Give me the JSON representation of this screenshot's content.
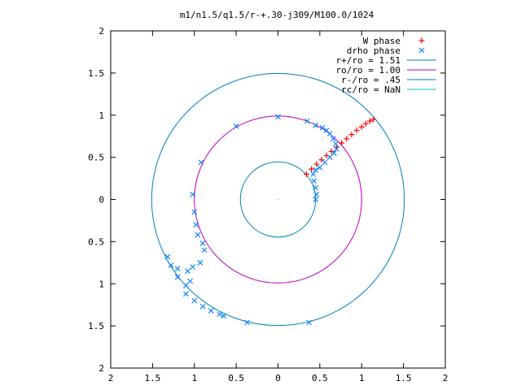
{
  "chart_data": {
    "type": "scatter",
    "title": "m1/n1.5/q1.5/r-+.30-j309/M100.0/1024",
    "xlim": [
      -2,
      2
    ],
    "ylim": [
      -2,
      2
    ],
    "x_ticks": [
      {
        "value": -2,
        "label": "2"
      },
      {
        "value": -1.5,
        "label": "1.5"
      },
      {
        "value": -1,
        "label": "1"
      },
      {
        "value": -0.5,
        "label": "0.5"
      },
      {
        "value": 0,
        "label": "0"
      },
      {
        "value": 0.5,
        "label": "0.5"
      },
      {
        "value": 1,
        "label": "1"
      },
      {
        "value": 1.5,
        "label": "1.5"
      },
      {
        "value": 2,
        "label": "2"
      }
    ],
    "y_ticks": [
      {
        "value": 2,
        "label": "2"
      },
      {
        "value": 1.5,
        "label": "1.5"
      },
      {
        "value": 1,
        "label": "1"
      },
      {
        "value": 0.5,
        "label": "0.5"
      },
      {
        "value": 0,
        "label": "0"
      },
      {
        "value": -0.5,
        "label": "0.5"
      },
      {
        "value": -1,
        "label": "1"
      },
      {
        "value": -1.5,
        "label": "1.5"
      },
      {
        "value": -2,
        "label": "2"
      }
    ],
    "legend_position": "top-right",
    "grid": false,
    "series": [
      {
        "name": "W phase",
        "marker": "plus",
        "color": "#ff0000",
        "points": [
          [
            0.34,
            0.3
          ],
          [
            0.4,
            0.36
          ],
          [
            0.46,
            0.42
          ],
          [
            0.52,
            0.47
          ],
          [
            0.58,
            0.52
          ],
          [
            0.64,
            0.57
          ],
          [
            0.7,
            0.62
          ],
          [
            0.76,
            0.67
          ],
          [
            0.82,
            0.72
          ],
          [
            0.88,
            0.77
          ],
          [
            0.94,
            0.82
          ],
          [
            1.0,
            0.86
          ],
          [
            1.05,
            0.9
          ],
          [
            1.1,
            0.93
          ],
          [
            1.14,
            0.95
          ]
        ]
      },
      {
        "name": "drho phase",
        "marker": "cross",
        "color": "#0080ff",
        "points": [
          [
            0.0,
            0.98
          ],
          [
            -0.5,
            0.87
          ],
          [
            0.35,
            0.93
          ],
          [
            0.45,
            0.88
          ],
          [
            0.53,
            0.85
          ],
          [
            0.58,
            0.82
          ],
          [
            0.62,
            0.78
          ],
          [
            0.66,
            0.72
          ],
          [
            0.69,
            0.66
          ],
          [
            0.7,
            0.6
          ],
          [
            0.67,
            0.55
          ],
          [
            0.62,
            0.5
          ],
          [
            0.56,
            0.44
          ],
          [
            0.5,
            0.38
          ],
          [
            0.45,
            0.35
          ],
          [
            0.42,
            0.3
          ],
          [
            0.43,
            0.22
          ],
          [
            0.45,
            0.14
          ],
          [
            0.46,
            0.06
          ],
          [
            0.45,
            0.0
          ],
          [
            -0.92,
            0.44
          ],
          [
            -1.02,
            0.06
          ],
          [
            -1.0,
            -0.15
          ],
          [
            -0.98,
            -0.3
          ],
          [
            -0.96,
            -0.42
          ],
          [
            -0.9,
            -0.52
          ],
          [
            -0.88,
            -0.6
          ],
          [
            -0.93,
            -0.75
          ],
          [
            -1.02,
            -0.8
          ],
          [
            -1.08,
            -0.85
          ],
          [
            -1.05,
            -0.97
          ],
          [
            -1.1,
            -1.02
          ],
          [
            -1.2,
            -0.82
          ],
          [
            -1.32,
            -0.68
          ],
          [
            -1.28,
            -0.78
          ],
          [
            -1.2,
            -0.92
          ],
          [
            -1.1,
            -1.12
          ],
          [
            -1.0,
            -1.2
          ],
          [
            -0.9,
            -1.27
          ],
          [
            -0.8,
            -1.32
          ],
          [
            -0.7,
            -1.36
          ],
          [
            -0.65,
            -1.38
          ],
          [
            -0.37,
            -1.46
          ],
          [
            0.37,
            -1.46
          ]
        ]
      },
      {
        "name": "r+/ro = 1.51",
        "kind": "circle",
        "radius": 1.51,
        "color": "#0080c0"
      },
      {
        "name": "ro/ro = 1.00",
        "kind": "circle",
        "radius": 1.0,
        "color": "#c000c0"
      },
      {
        "name": "r-/ro = .45",
        "kind": "circle",
        "radius": 0.45,
        "color": "#0080c0"
      },
      {
        "name": "rc/ro = NaN",
        "kind": "circle",
        "radius": null,
        "color": "#00c0c0"
      }
    ]
  }
}
